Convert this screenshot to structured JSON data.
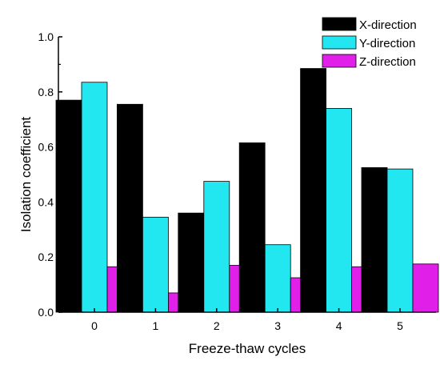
{
  "chart_data": {
    "type": "bar",
    "title": "",
    "xlabel": "Freeze-thaw cycles",
    "ylabel": "Isolation coefficient",
    "categories": [
      "0",
      "1",
      "2",
      "3",
      "4",
      "5"
    ],
    "ylim": [
      0,
      1.0
    ],
    "yticks": [
      "0.0",
      "0.2",
      "0.4",
      "0.6",
      "0.8",
      "1.0"
    ],
    "grid": false,
    "legend_position": "top-right",
    "series": [
      {
        "name": "X-direction",
        "color": "#000000",
        "values": [
          0.77,
          0.755,
          0.36,
          0.615,
          0.885,
          0.525
        ]
      },
      {
        "name": "Y-direction",
        "color": "#22e6f0",
        "values": [
          0.835,
          0.345,
          0.475,
          0.245,
          0.74,
          0.52
        ]
      },
      {
        "name": "Z-direction",
        "color": "#e020e8",
        "values": [
          0.165,
          0.07,
          0.17,
          0.125,
          0.165,
          0.175
        ]
      }
    ]
  }
}
